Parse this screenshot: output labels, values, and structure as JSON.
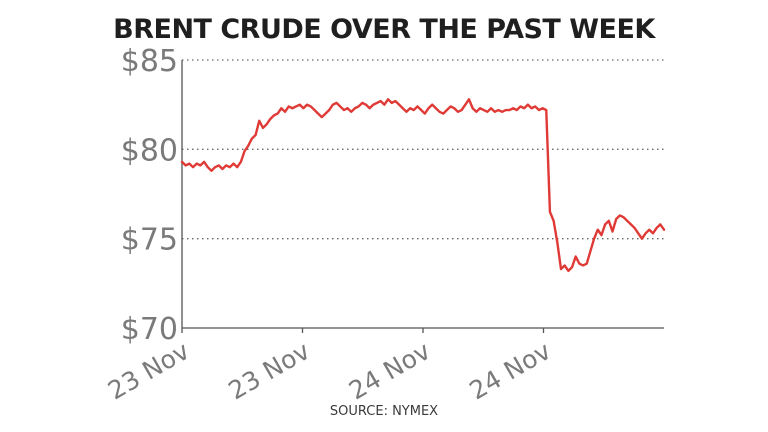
{
  "chart_data": {
    "type": "line",
    "title": "BRENT CRUDE OVER THE PAST WEEK",
    "source": "SOURCE: NYMEX",
    "xlabel": "",
    "ylabel": "",
    "ylim": [
      70,
      85
    ],
    "y_ticks": [
      {
        "value": 85,
        "label": "$85"
      },
      {
        "value": 80,
        "label": "$80"
      },
      {
        "value": 75,
        "label": "$75"
      },
      {
        "value": 70,
        "label": "$70"
      }
    ],
    "x_ticks": [
      {
        "position": 0,
        "label": "23 Nov"
      },
      {
        "position": 0.25,
        "label": "23 Nov"
      },
      {
        "position": 0.5,
        "label": "24 Nov"
      },
      {
        "position": 0.75,
        "label": "24 Nov"
      }
    ],
    "grid": "horizontal dotted",
    "line_color": "#e03a36",
    "series": [
      {
        "values": [
          79.3,
          79.1,
          79.2,
          79.0,
          79.2,
          79.1,
          79.3,
          79.0,
          78.8,
          79.0,
          79.1,
          78.9,
          79.1,
          79.0,
          79.2,
          79.0,
          79.3,
          79.9,
          80.2,
          80.6,
          80.8,
          81.6,
          81.2,
          81.4,
          81.7,
          81.9,
          82.0,
          82.3,
          82.1,
          82.4,
          82.3,
          82.4,
          82.5,
          82.3,
          82.5,
          82.4,
          82.2,
          82.0,
          81.8,
          82.0,
          82.2,
          82.5,
          82.6,
          82.4,
          82.2,
          82.3,
          82.1,
          82.3,
          82.4,
          82.6,
          82.5,
          82.3,
          82.5,
          82.6,
          82.7,
          82.5,
          82.8,
          82.6,
          82.7,
          82.5,
          82.3,
          82.1,
          82.3,
          82.2,
          82.4,
          82.2,
          82.0,
          82.3,
          82.5,
          82.3,
          82.1,
          82.0,
          82.2,
          82.4,
          82.3,
          82.1,
          82.2,
          82.5,
          82.8,
          82.3,
          82.1,
          82.3,
          82.2,
          82.1,
          82.3,
          82.1,
          82.2,
          82.1,
          82.2,
          82.2,
          82.3,
          82.2,
          82.4,
          82.3,
          82.5,
          82.3,
          82.4,
          82.2,
          82.3,
          82.2,
          76.5,
          76.0,
          74.8,
          73.3,
          73.5,
          73.2,
          73.4,
          74.0,
          73.6,
          73.5,
          73.6,
          74.3,
          75.0,
          75.5,
          75.2,
          75.8,
          76.0,
          75.4,
          76.1,
          76.3,
          76.2,
          76.0,
          75.8,
          75.6,
          75.3,
          75.0,
          75.3,
          75.5,
          75.3,
          75.6,
          75.8,
          75.5
        ]
      }
    ]
  }
}
